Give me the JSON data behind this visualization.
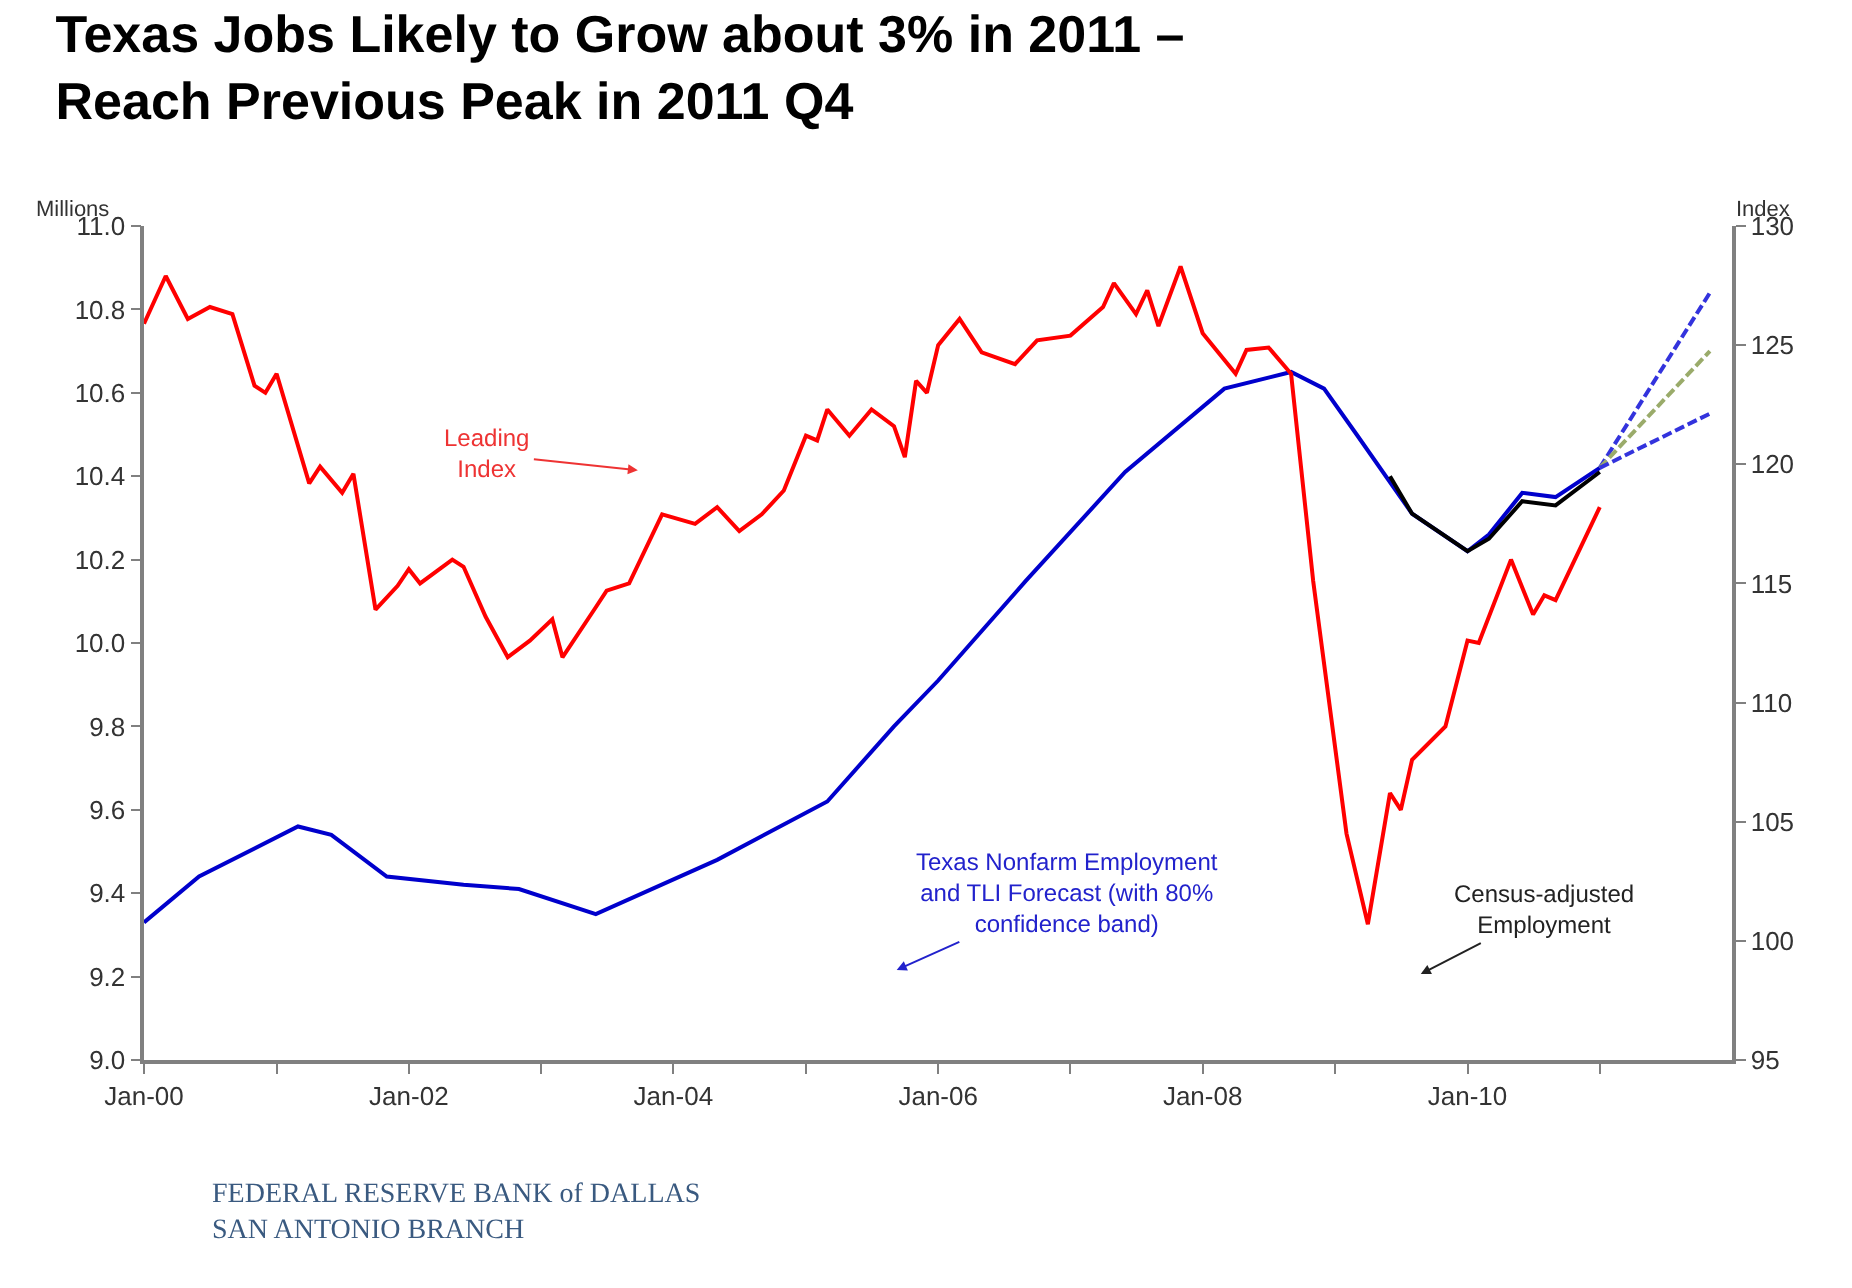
{
  "chart_data": {
    "type": "line",
    "title": "Texas Jobs Likely to Grow about 3% in 2011 –\nReach Previous Peak in 2011 Q4",
    "ylabel": "Millions",
    "y2label": "Index",
    "xlim": [
      "2000-01",
      "2012-01"
    ],
    "xticks": [
      {
        "value": "2000-01",
        "label": "Jan-00"
      },
      {
        "value": "2001-01",
        "label": null
      },
      {
        "value": "2002-01",
        "label": "Jan-02"
      },
      {
        "value": "2003-01",
        "label": null
      },
      {
        "value": "2004-01",
        "label": "Jan-04"
      },
      {
        "value": "2005-01",
        "label": null
      },
      {
        "value": "2006-01",
        "label": "Jan-06"
      },
      {
        "value": "2007-01",
        "label": null
      },
      {
        "value": "2008-01",
        "label": "Jan-08"
      },
      {
        "value": "2009-01",
        "label": null
      },
      {
        "value": "2010-01",
        "label": "Jan-10"
      },
      {
        "value": "2011-01",
        "label": null
      }
    ],
    "ylim": [
      9.0,
      11.0
    ],
    "yticks": [
      {
        "value": 9.0,
        "label": "9.0"
      },
      9.2,
      9.4,
      9.6,
      9.8,
      {
        "value": 10.0,
        "label": "10.0"
      },
      10.2,
      10.4,
      10.6,
      10.8,
      {
        "value": 11.0,
        "label": "11.0"
      }
    ],
    "y2lim": [
      95,
      130
    ],
    "y2ticks": [
      95,
      100,
      105,
      110,
      115,
      120,
      125,
      130
    ],
    "marker": "none",
    "series": [
      {
        "color": "#ff0000",
        "axis": "y2",
        "x": [
          "2000-01",
          "2000-03",
          "2000-05",
          "2000-07",
          "2000-09",
          "2000-11",
          "2000-12",
          "2001-01",
          "2001-04",
          "2001-05",
          "2001-07",
          "2001-08",
          "2001-10",
          "2001-12",
          "2002-01",
          "2002-02",
          "2002-05",
          "2002-06",
          "2002-08",
          "2002-10",
          "2002-12",
          "2003-02",
          "2003-03",
          "2003-06",
          "2003-07",
          "2003-09",
          "2003-12",
          "2004-03",
          "2004-05",
          "2004-07",
          "2004-09",
          "2004-11",
          "2005-01",
          "2005-02",
          "2005-03",
          "2005-05",
          "2005-07",
          "2005-09",
          "2005-10",
          "2005-11",
          "2005-12",
          "2006-01",
          "2006-03",
          "2006-05",
          "2006-08",
          "2006-10",
          "2007-01",
          "2007-04",
          "2007-05",
          "2007-07",
          "2007-08",
          "2007-09",
          "2007-11",
          "2008-01",
          "2008-04",
          "2008-05",
          "2008-07",
          "2008-09",
          "2008-11",
          "2009-02",
          "2009-04",
          "2009-06",
          "2009-07",
          "2009-08",
          "2009-11",
          "2010-01",
          "2010-02",
          "2010-05",
          "2010-07",
          "2010-08",
          "2010-09",
          "2011-01"
        ],
        "values": [
          125.9,
          127.9,
          126.1,
          126.6,
          126.3,
          123.3,
          123.0,
          123.8,
          119.2,
          119.9,
          118.8,
          119.6,
          113.9,
          114.9,
          115.6,
          115.0,
          116.0,
          115.7,
          113.6,
          111.9,
          112.6,
          113.5,
          111.9,
          114.0,
          114.7,
          115.0,
          117.9,
          117.5,
          118.2,
          117.2,
          117.9,
          118.9,
          121.2,
          121.0,
          122.3,
          121.2,
          122.3,
          121.6,
          120.3,
          123.5,
          123.0,
          125.0,
          126.1,
          124.7,
          124.2,
          125.2,
          125.4,
          126.6,
          127.6,
          126.3,
          127.3,
          125.8,
          128.3,
          125.5,
          123.8,
          124.8,
          124.9,
          123.8,
          115.1,
          104.5,
          100.7,
          106.2,
          105.5,
          107.6,
          109.0,
          112.6,
          112.5,
          116.0,
          113.7,
          114.5,
          114.3,
          118.2
        ]
      },
      {
        "color": "#0000cc",
        "x": [
          "2000-01",
          "2000-06",
          "2001-03",
          "2001-06",
          "2001-11",
          "2002-06",
          "2002-11",
          "2003-06",
          "2004-05",
          "2005-03",
          "2005-09",
          "2006-01",
          "2006-09",
          "2007-06",
          "2008-03",
          "2008-09",
          "2008-12",
          "2009-03",
          "2009-08",
          "2010-01",
          "2010-03",
          "2010-06",
          "2010-09",
          "2011-01"
        ],
        "values": [
          9.33,
          9.44,
          9.56,
          9.54,
          9.44,
          9.42,
          9.41,
          9.35,
          9.48,
          9.62,
          9.8,
          9.91,
          10.15,
          10.41,
          10.61,
          10.65,
          10.61,
          10.5,
          10.31,
          10.22,
          10.26,
          10.36,
          10.35,
          10.42
        ]
      },
      {
        "color": "#000000",
        "x": [
          "2009-06",
          "2009-08",
          "2010-01",
          "2010-03",
          "2010-06",
          "2010-09",
          "2011-01"
        ],
        "values": [
          10.4,
          10.31,
          10.22,
          10.25,
          10.34,
          10.33,
          10.41
        ]
      },
      {
        "color": "#3333dd",
        "line_style": "dashed",
        "x": [
          "2011-01",
          "2011-11"
        ],
        "values": [
          10.42,
          10.84
        ]
      },
      {
        "color": "#9aab6a",
        "line_style": "dashed",
        "x": [
          "2011-01",
          "2011-11"
        ],
        "values": [
          10.42,
          10.7
        ]
      },
      {
        "color": "#3333dd",
        "line_style": "dashed",
        "x": [
          "2011-01",
          "2011-11"
        ],
        "values": [
          10.42,
          10.55
        ]
      }
    ],
    "annotations": [
      "Leading\nIndex",
      "Texas Nonfarm Employment\nand TLI Forecast (with 80%\nconfidence band)",
      "Census-adjusted\nEmployment",
      "FEDERAL RESERVE BANK of DALLAS\nSAN ANTONIO BRANCH"
    ]
  }
}
